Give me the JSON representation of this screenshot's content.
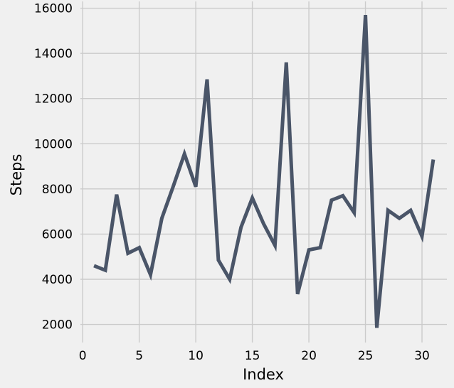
{
  "chart_data": {
    "type": "line",
    "title": "",
    "xlabel": "Index",
    "ylabel": "Steps",
    "xlim": [
      -0.2,
      32.2
    ],
    "ylim": [
      1200,
      16300
    ],
    "x_ticks": [
      0,
      5,
      10,
      15,
      20,
      25,
      30
    ],
    "y_ticks": [
      2000,
      4000,
      6000,
      8000,
      10000,
      12000,
      14000,
      16000
    ],
    "grid": true,
    "line_color": "#4a5568",
    "series": [
      {
        "x": [
          1,
          2,
          3,
          4,
          5,
          6,
          7,
          8,
          9,
          10,
          11,
          12,
          13,
          14,
          15,
          16,
          17,
          18,
          19,
          20,
          21,
          22,
          23,
          24,
          25,
          26,
          27,
          28,
          29,
          30,
          31
        ],
        "values": [
          4600,
          4400,
          7750,
          5150,
          5400,
          4200,
          6700,
          8100,
          9550,
          8100,
          12850,
          4850,
          4000,
          6300,
          7600,
          6450,
          5500,
          13600,
          3350,
          5300,
          5400,
          7500,
          7700,
          6950,
          15700,
          1850,
          7050,
          6700,
          7050,
          5900,
          9300
        ]
      }
    ]
  }
}
